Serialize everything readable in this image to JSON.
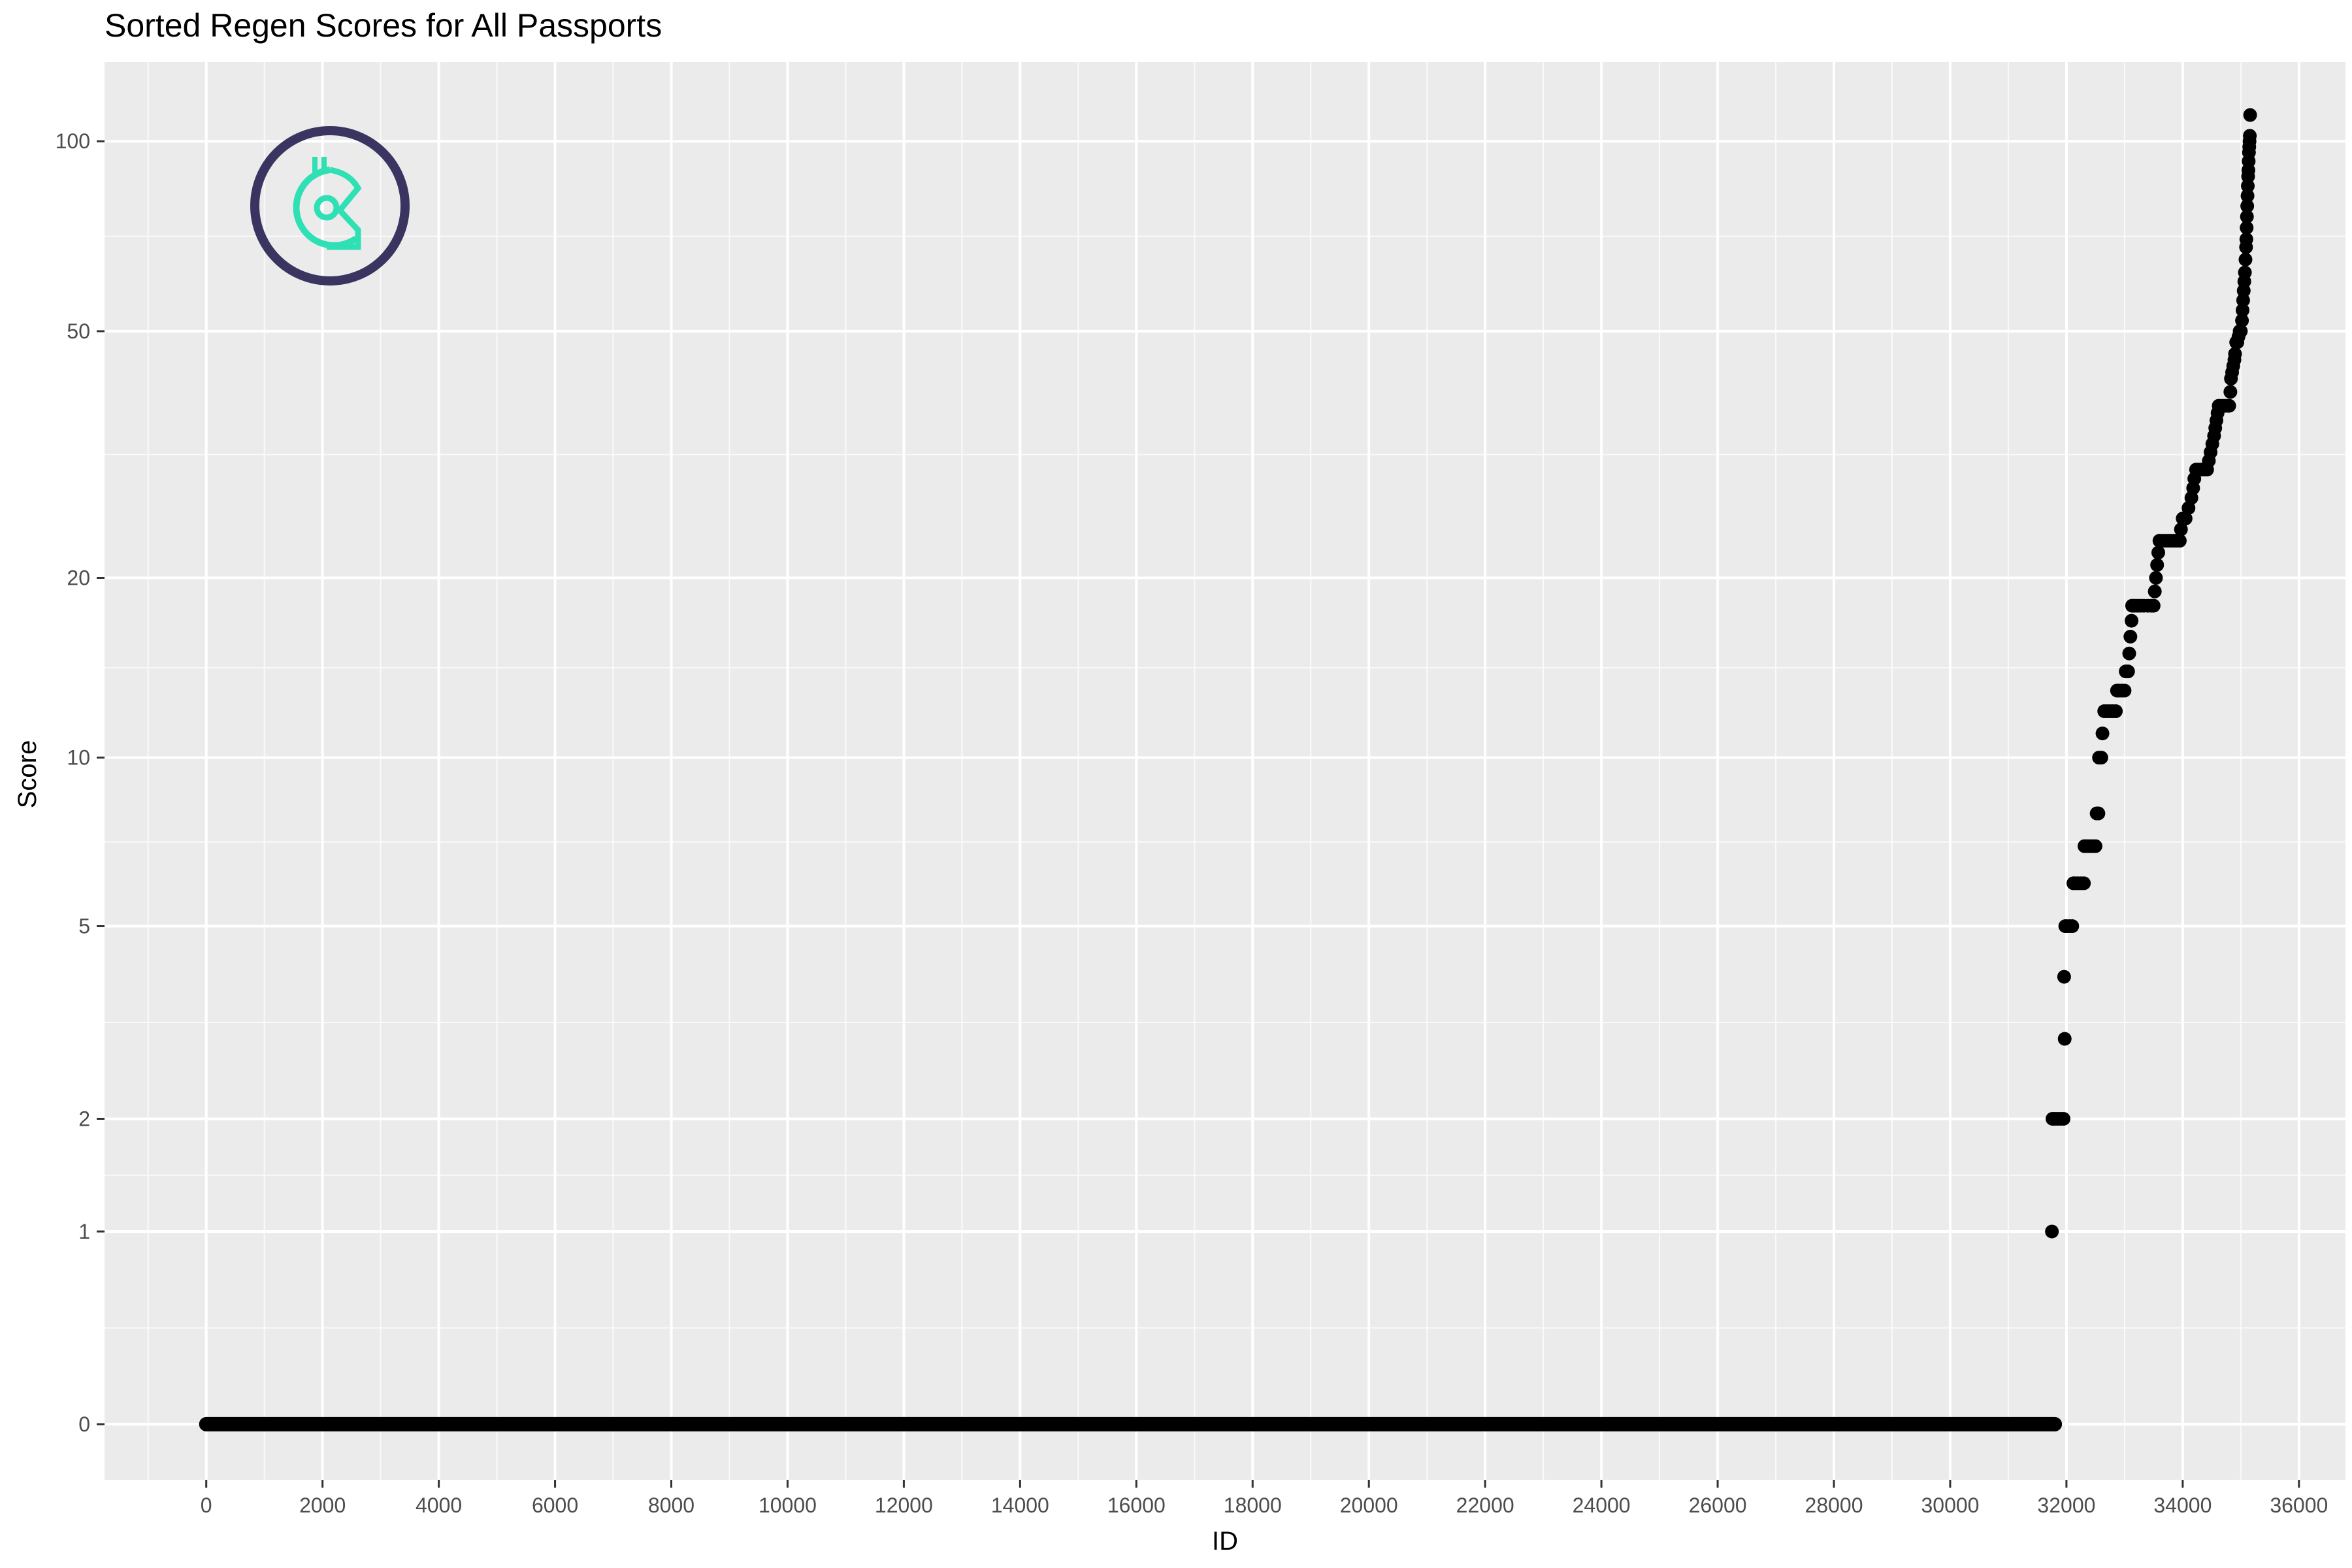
{
  "chart_data": {
    "type": "scatter",
    "title": "Sorted Regen Scores for All Passports",
    "xlabel": "ID",
    "ylabel": "Score",
    "xlim": [
      -1750,
      36800
    ],
    "ylim": [
      -0.2,
      4.9
    ],
    "y_scale": "log1p",
    "x_ticks": [
      0,
      2000,
      4000,
      6000,
      8000,
      10000,
      12000,
      14000,
      16000,
      18000,
      20000,
      22000,
      24000,
      26000,
      28000,
      30000,
      32000,
      34000,
      36000
    ],
    "x_tick_labels": [
      "0",
      "2000",
      "4000",
      "6000",
      "8000",
      "10000",
      "12000",
      "14000",
      "16000",
      "18000",
      "20000",
      "22000",
      "24000",
      "26000",
      "28000",
      "30000",
      "32000",
      "34000",
      "36000"
    ],
    "y_ticks": [
      0,
      1,
      2,
      5,
      10,
      20,
      50,
      100
    ],
    "y_tick_labels": [
      "0",
      "1",
      "2",
      "5",
      "10",
      "20",
      "50",
      "100"
    ],
    "grid": true,
    "background": "#ebebeb",
    "point_color": "#000000",
    "zero_run": {
      "x_start": 0,
      "x_end": 31800,
      "y": 0
    },
    "points": [
      [
        31750,
        1
      ],
      [
        31760,
        2
      ],
      [
        31800,
        2
      ],
      [
        31850,
        2
      ],
      [
        31900,
        2
      ],
      [
        31950,
        2
      ],
      [
        31960,
        4
      ],
      [
        31970,
        3
      ],
      [
        31980,
        5
      ],
      [
        32000,
        5
      ],
      [
        32050,
        5
      ],
      [
        32100,
        5
      ],
      [
        32120,
        6
      ],
      [
        32150,
        6
      ],
      [
        32200,
        6
      ],
      [
        32250,
        6
      ],
      [
        32300,
        6
      ],
      [
        32310,
        7
      ],
      [
        32350,
        7
      ],
      [
        32400,
        7
      ],
      [
        32450,
        7
      ],
      [
        32500,
        7
      ],
      [
        32520,
        8
      ],
      [
        32550,
        8
      ],
      [
        32560,
        10
      ],
      [
        32600,
        10
      ],
      [
        32620,
        11
      ],
      [
        32650,
        12
      ],
      [
        32700,
        12
      ],
      [
        32750,
        12
      ],
      [
        32800,
        12
      ],
      [
        32850,
        12
      ],
      [
        32870,
        13
      ],
      [
        32900,
        13
      ],
      [
        32950,
        13
      ],
      [
        33000,
        13
      ],
      [
        33020,
        14
      ],
      [
        33060,
        14
      ],
      [
        33080,
        15
      ],
      [
        33100,
        16
      ],
      [
        33120,
        17
      ],
      [
        33130,
        18
      ],
      [
        33170,
        18
      ],
      [
        33220,
        18
      ],
      [
        33270,
        18
      ],
      [
        33330,
        18
      ],
      [
        33400,
        18
      ],
      [
        33460,
        18
      ],
      [
        33500,
        18
      ],
      [
        33520,
        19
      ],
      [
        33540,
        20
      ],
      [
        33560,
        21
      ],
      [
        33580,
        22
      ],
      [
        33600,
        23
      ],
      [
        33650,
        23
      ],
      [
        33700,
        23
      ],
      [
        33750,
        23
      ],
      [
        33800,
        23
      ],
      [
        33850,
        23
      ],
      [
        33900,
        23
      ],
      [
        33950,
        23
      ],
      [
        33970,
        24
      ],
      [
        34000,
        25
      ],
      [
        34050,
        25
      ],
      [
        34100,
        26
      ],
      [
        34150,
        27
      ],
      [
        34180,
        28
      ],
      [
        34200,
        29
      ],
      [
        34230,
        30
      ],
      [
        34270,
        30
      ],
      [
        34320,
        30
      ],
      [
        34370,
        30
      ],
      [
        34420,
        30
      ],
      [
        34450,
        31
      ],
      [
        34480,
        32
      ],
      [
        34510,
        33
      ],
      [
        34540,
        34
      ],
      [
        34560,
        35
      ],
      [
        34580,
        36
      ],
      [
        34600,
        37
      ],
      [
        34620,
        38
      ],
      [
        34660,
        38
      ],
      [
        34700,
        38
      ],
      [
        34740,
        38
      ],
      [
        34780,
        38
      ],
      [
        34800,
        38
      ],
      [
        34820,
        40
      ],
      [
        34830,
        42
      ],
      [
        34850,
        43
      ],
      [
        34870,
        44
      ],
      [
        34890,
        45
      ],
      [
        34900,
        46
      ],
      [
        34920,
        48
      ],
      [
        34940,
        48
      ],
      [
        34960,
        49
      ],
      [
        34980,
        50
      ],
      [
        35000,
        50
      ],
      [
        35020,
        52
      ],
      [
        35030,
        54
      ],
      [
        35040,
        56
      ],
      [
        35050,
        58
      ],
      [
        35060,
        60
      ],
      [
        35070,
        62
      ],
      [
        35080,
        65
      ],
      [
        35090,
        68
      ],
      [
        35095,
        70
      ],
      [
        35100,
        73
      ],
      [
        35105,
        76
      ],
      [
        35110,
        79
      ],
      [
        35115,
        82
      ],
      [
        35120,
        85
      ],
      [
        35125,
        88
      ],
      [
        35130,
        90
      ],
      [
        35135,
        93
      ],
      [
        35140,
        96
      ],
      [
        35145,
        98
      ],
      [
        35150,
        100
      ],
      [
        35155,
        102
      ],
      [
        35160,
        110
      ]
    ]
  },
  "logo": {
    "ring_color": "#3a3560",
    "mark_color": "#2ee0b4",
    "icon": "gitcoin-logo-icon"
  }
}
